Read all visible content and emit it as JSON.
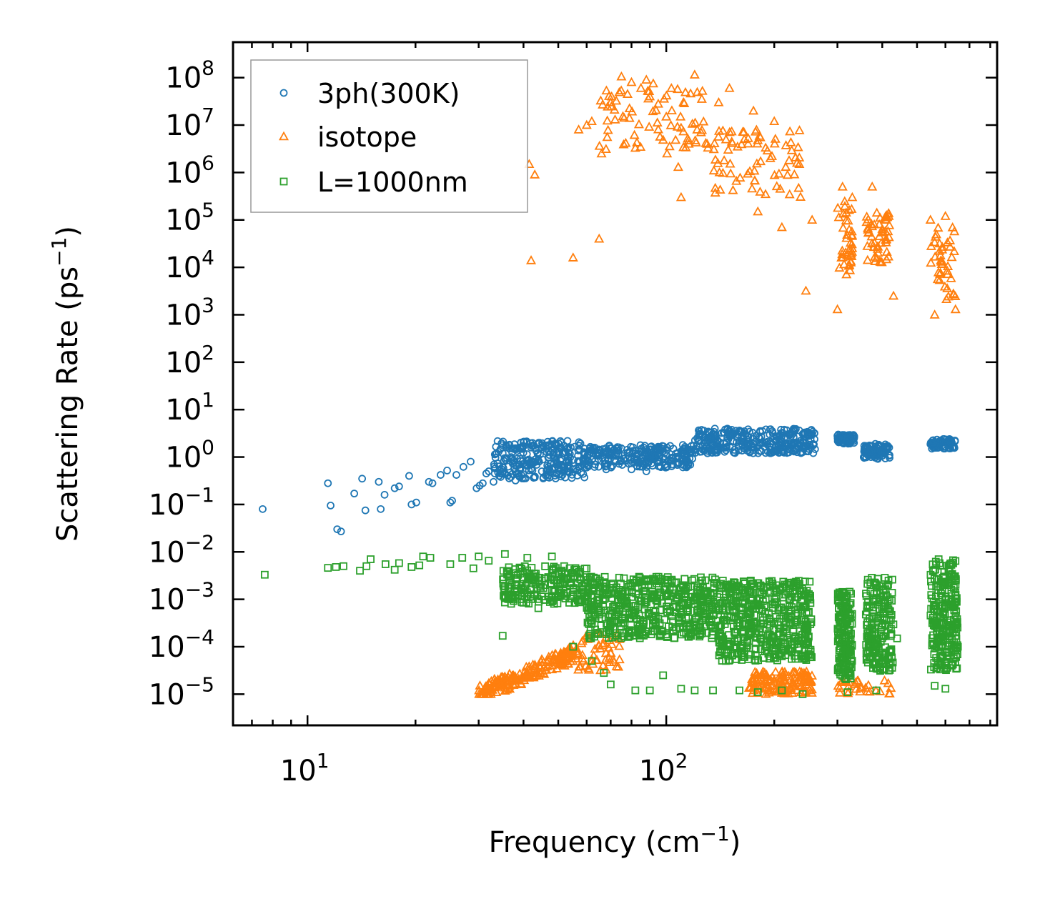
{
  "chart_data": {
    "type": "scatter",
    "title": "",
    "xlabel": "Frequency (cm",
    "xlabel_sup": "−1",
    "xlabel_close": ")",
    "ylabel": "Scattering Rate (ps",
    "ylabel_sup": "−1",
    "ylabel_close": ")",
    "xscale": "log",
    "yscale": "log",
    "xlim": [
      6.2,
      836
    ],
    "ylim": [
      2.2e-06,
      560000000.0
    ],
    "grid": false,
    "legend_position": "top-left",
    "x_ticks": [
      {
        "value": 10,
        "base": "10",
        "exp": "1"
      },
      {
        "value": 100,
        "base": "10",
        "exp": "2"
      }
    ],
    "y_ticks": [
      {
        "value": 100000000.0,
        "base": "10",
        "exp": "8"
      },
      {
        "value": 10000000.0,
        "base": "10",
        "exp": "7"
      },
      {
        "value": 1000000.0,
        "base": "10",
        "exp": "6"
      },
      {
        "value": 100000.0,
        "base": "10",
        "exp": "5"
      },
      {
        "value": 10000.0,
        "base": "10",
        "exp": "4"
      },
      {
        "value": 1000.0,
        "base": "10",
        "exp": "3"
      },
      {
        "value": 100.0,
        "base": "10",
        "exp": "2"
      },
      {
        "value": 10.0,
        "base": "10",
        "exp": "1"
      },
      {
        "value": 1.0,
        "base": "10",
        "exp": "0"
      },
      {
        "value": 0.1,
        "base": "10",
        "exp": "−1"
      },
      {
        "value": 0.01,
        "base": "10",
        "exp": "−2"
      },
      {
        "value": 0.001,
        "base": "10",
        "exp": "−3"
      },
      {
        "value": 0.0001,
        "base": "10",
        "exp": "−4"
      },
      {
        "value": 1e-05,
        "base": "10",
        "exp": "−5"
      }
    ],
    "series": [
      {
        "name": "3ph(300K)",
        "marker": "circle",
        "color": "#1f77b4",
        "points": [
          [
            7.5,
            0.08
          ],
          [
            11.4,
            0.28
          ],
          [
            11.6,
            0.095
          ],
          [
            12.1,
            0.03
          ],
          [
            12.4,
            0.027
          ],
          [
            13.5,
            0.17
          ],
          [
            14.2,
            0.35
          ],
          [
            14.5,
            0.075
          ],
          [
            15.8,
            0.3
          ],
          [
            16.0,
            0.08
          ],
          [
            16.4,
            0.16
          ],
          [
            17.5,
            0.22
          ],
          [
            18.0,
            0.24
          ],
          [
            19.2,
            0.4
          ],
          [
            19.5,
            0.1
          ],
          [
            20.1,
            0.11
          ],
          [
            21.8,
            0.3
          ],
          [
            22.3,
            0.28
          ],
          [
            23.5,
            0.42
          ],
          [
            24.5,
            0.52
          ],
          [
            25.0,
            0.11
          ],
          [
            25.3,
            0.12
          ],
          [
            26.0,
            0.42
          ],
          [
            27.2,
            0.62
          ],
          [
            28.5,
            0.8
          ],
          [
            29.6,
            0.22
          ],
          [
            30.2,
            0.25
          ],
          [
            30.8,
            0.28
          ],
          [
            31.5,
            0.45
          ],
          [
            32.0,
            0.5
          ],
          [
            33.0,
            0.3
          ],
          [
            34.2,
            0.4
          ],
          [
            35.0,
            1.2
          ],
          [
            36.5,
            1.5
          ],
          [
            37.0,
            0.9
          ],
          [
            38.0,
            0.32
          ],
          [
            39.0,
            0.38
          ],
          [
            40.0,
            2.1
          ],
          [
            42.0,
            0.55
          ],
          [
            45.0,
            0.5
          ],
          [
            48.0,
            0.55
          ],
          [
            50.0,
            0.6
          ],
          [
            55.0,
            0.55
          ],
          [
            60.0,
            0.6
          ],
          [
            68.0,
            0.55
          ],
          [
            80.0,
            0.55
          ],
          [
            88.0,
            0.5
          ],
          [
            300.0,
            2.8
          ],
          [
            305.0,
            2.2
          ],
          [
            318.0,
            2.0
          ],
          [
            360.0,
            1.5
          ],
          [
            372.0,
            1.0
          ],
          [
            395.0,
            1.4
          ],
          [
            555.0,
            2.0
          ],
          [
            620.0,
            2.0
          ]
        ],
        "bands": [
          {
            "x": [
              33,
              60
            ],
            "y": [
              0.35,
              2.2
            ],
            "n": 260
          },
          {
            "x": [
              60,
              120
            ],
            "y": [
              0.6,
              1.8
            ],
            "n": 260
          },
          {
            "x": [
              120,
              260
            ],
            "y": [
              1.2,
              4.0
            ],
            "n": 320
          },
          {
            "x": [
              300,
              335
            ],
            "y": [
              1.9,
              3.0
            ],
            "n": 60
          },
          {
            "x": [
              355,
              420
            ],
            "y": [
              0.9,
              1.9
            ],
            "n": 90
          },
          {
            "x": [
              545,
              640
            ],
            "y": [
              1.5,
              2.4
            ],
            "n": 80
          }
        ]
      },
      {
        "name": "isotope",
        "marker": "triangle",
        "color": "#ff7f0e",
        "points": [
          [
            41.5,
            1500000.0
          ],
          [
            43.0,
            900000.0
          ],
          [
            42.0,
            14000.0
          ],
          [
            55.0,
            16000.0
          ],
          [
            65.0,
            40000.0
          ],
          [
            57.0,
            8000000.0
          ],
          [
            60.0,
            10000000.0
          ],
          [
            62.0,
            12000000.0
          ],
          [
            66.0,
            2500000.0
          ],
          [
            70.0,
            30000000.0
          ],
          [
            72.0,
            13000000.0
          ],
          [
            75.0,
            105000000.0
          ],
          [
            78.0,
            45000000.0
          ],
          [
            80.0,
            80000000.0
          ],
          [
            85.0,
            60000000.0
          ],
          [
            88.0,
            90000000.0
          ],
          [
            90.0,
            40000000.0
          ],
          [
            92.0,
            75000000.0
          ],
          [
            95.0,
            28000000.0
          ],
          [
            100.0,
            15000000.0
          ],
          [
            100.5,
            2500000.0
          ],
          [
            108.0,
            1300000.0
          ],
          [
            110.0,
            300000.0
          ],
          [
            120.0,
            115000000.0
          ],
          [
            125.0,
            7000000.0
          ],
          [
            130.0,
            4000000.0
          ],
          [
            140.0,
            30000000.0
          ],
          [
            145.0,
            1800000.0
          ],
          [
            150.0,
            60000000.0
          ],
          [
            158.0,
            3500000.0
          ],
          [
            165.0,
            5000000.0
          ],
          [
            175.0,
            20000000.0
          ],
          [
            180.0,
            150000.0
          ],
          [
            195.0,
            2000000.0
          ],
          [
            200.0,
            12000000.0
          ],
          [
            210.0,
            70000.0
          ],
          [
            220.0,
            1800000.0
          ],
          [
            235.0,
            1500000.0
          ],
          [
            245.0,
            3200.0
          ],
          [
            255.0,
            100000.0
          ],
          [
            300.0,
            1300.0
          ],
          [
            310.0,
            500000.0
          ],
          [
            330.0,
            300000.0
          ],
          [
            375.0,
            500000.0
          ],
          [
            380.0,
            80000.0
          ],
          [
            410.0,
            100000.0
          ],
          [
            430.0,
            2500.0
          ],
          [
            545.0,
            100000.0
          ],
          [
            560.0,
            1000.0
          ],
          [
            600.0,
            120000.0
          ],
          [
            640.0,
            1300.0
          ]
        ],
        "bands": [
          {
            "x": [
              65,
              130
            ],
            "y": [
              3000000.0,
              60000000.0
            ],
            "n": 70
          },
          {
            "x": [
              130,
              240
            ],
            "y": [
              300000.0,
              8000000.0
            ],
            "n": 70
          },
          {
            "x": [
              300,
              330
            ],
            "y": [
              7000.0,
              300000.0
            ],
            "n": 40
          },
          {
            "x": [
              360,
              420
            ],
            "y": [
              10000.0,
              150000.0
            ],
            "n": 50
          },
          {
            "x": [
              545,
              640
            ],
            "y": [
              2000.0,
              80000.0
            ],
            "n": 40
          },
          {
            "x": [
              30,
              55
            ],
            "y": [
              1e-05,
              0.0001
            ],
            "n": 200,
            "trend": "rising"
          },
          {
            "x": [
              55,
              75
            ],
            "y": [
              3e-05,
              0.0002
            ],
            "n": 60
          },
          {
            "x": [
              170,
              255
            ],
            "y": [
              1e-05,
              3e-05
            ],
            "n": 140
          },
          {
            "x": [
              300,
              430
            ],
            "y": [
              1e-05,
              2e-05
            ],
            "n": 30
          }
        ]
      },
      {
        "name": "L=1000nm",
        "marker": "square",
        "color": "#2ca02c",
        "points": [
          [
            7.6,
            0.0033
          ],
          [
            11.4,
            0.0046
          ],
          [
            12.0,
            0.0048
          ],
          [
            12.6,
            0.005
          ],
          [
            14.0,
            0.004
          ],
          [
            14.6,
            0.005
          ],
          [
            15.0,
            0.007
          ],
          [
            16.5,
            0.0055
          ],
          [
            17.5,
            0.0042
          ],
          [
            18.0,
            0.0058
          ],
          [
            19.5,
            0.0048
          ],
          [
            20.5,
            0.0052
          ],
          [
            21.0,
            0.008
          ],
          [
            22.0,
            0.0075
          ],
          [
            25.0,
            0.0055
          ],
          [
            27.0,
            0.0075
          ],
          [
            29.0,
            0.0045
          ],
          [
            30.0,
            0.008
          ],
          [
            32.0,
            0.0065
          ],
          [
            35.5,
            0.009
          ],
          [
            36.5,
            0.003
          ],
          [
            38.0,
            0.0015
          ],
          [
            41.0,
            0.0075
          ],
          [
            45.0,
            0.0025
          ],
          [
            48.0,
            0.008
          ],
          [
            35.0,
            0.00017
          ],
          [
            44.0,
            0.00065
          ],
          [
            55.0,
            0.0001
          ],
          [
            62.0,
            5e-05
          ],
          [
            67.0,
            2.8e-05
          ],
          [
            70.0,
            1.6e-05
          ],
          [
            82.0,
            1.2e-05
          ],
          [
            90.0,
            1.2e-05
          ],
          [
            98.0,
            2.5e-05
          ],
          [
            110.0,
            1.3e-05
          ],
          [
            120.0,
            1.2e-05
          ],
          [
            135.0,
            1.2e-05
          ],
          [
            160.0,
            1.2e-05
          ],
          [
            180.0,
            1.1e-05
          ],
          [
            210.0,
            1.2e-05
          ],
          [
            240.0,
            1e-05
          ],
          [
            320.0,
            1.1e-05
          ],
          [
            385.0,
            1.2e-05
          ],
          [
            440.0,
            0.00015
          ],
          [
            560.0,
            1.5e-05
          ],
          [
            600.0,
            1.3e-05
          ],
          [
            640.0,
            0.00045
          ],
          [
            650.0,
            0.0001
          ]
        ],
        "bands": [
          {
            "x": [
              35,
              60
            ],
            "y": [
              0.0008,
              0.005
            ],
            "n": 220
          },
          {
            "x": [
              60,
              140
            ],
            "y": [
              0.00015,
              0.003
            ],
            "n": 500
          },
          {
            "x": [
              140,
              255
            ],
            "y": [
              5e-05,
              0.0025
            ],
            "n": 500
          },
          {
            "x": [
              300,
              330
            ],
            "y": [
              2e-05,
              0.0015
            ],
            "n": 160
          },
          {
            "x": [
              360,
              430
            ],
            "y": [
              3e-05,
              0.003
            ],
            "n": 200
          },
          {
            "x": [
              545,
              650
            ],
            "y": [
              3e-05,
              0.007
            ],
            "n": 240
          }
        ]
      }
    ]
  },
  "legend": {
    "items": [
      "3ph(300K)",
      "isotope",
      "L=1000nm"
    ]
  }
}
